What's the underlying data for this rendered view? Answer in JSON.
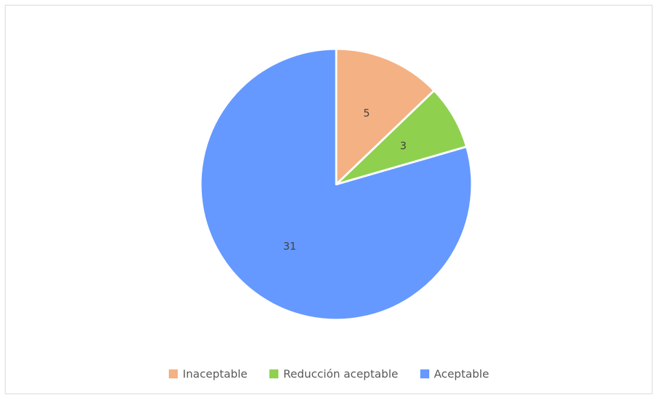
{
  "chart_data": {
    "type": "pie",
    "title": "",
    "categories": [
      "Inaceptable",
      "Reducción aceptable",
      "Aceptable"
    ],
    "values": [
      5,
      3,
      31
    ],
    "colors": [
      "#f4b183",
      "#8fd14f",
      "#6699ff"
    ],
    "data_labels": [
      "5",
      "3",
      "31"
    ],
    "legend_position": "bottom",
    "start_angle": "12 o'clock",
    "direction": "clockwise"
  }
}
